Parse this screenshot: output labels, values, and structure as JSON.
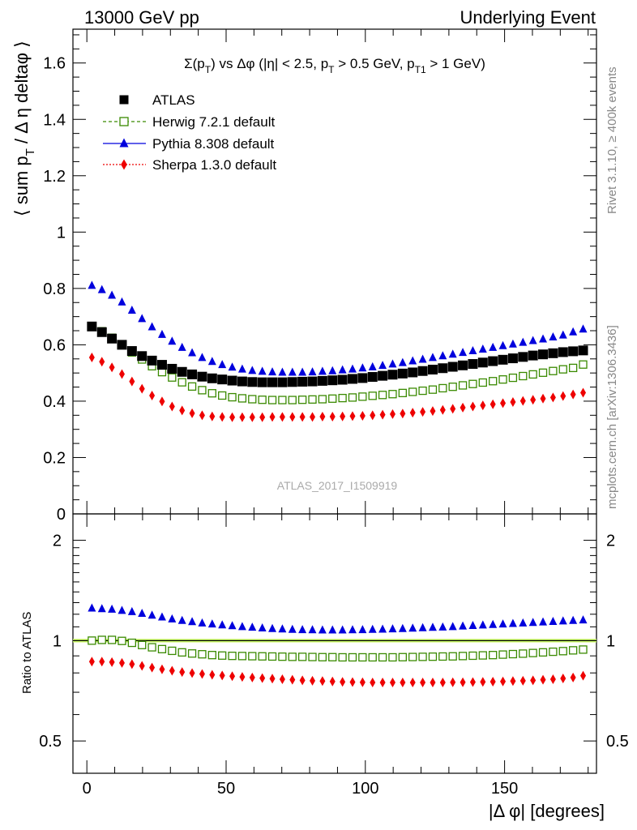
{
  "header": {
    "left": "13000 GeV pp",
    "right": "Underlying Event",
    "side_rivet": "Rivet 3.1.10, ≥ 400k events",
    "side_mcplots": "mcplots.cern.ch [arXiv:1306.3436]"
  },
  "chart_data": [
    {
      "type": "scatter",
      "panel": "main",
      "title_parts": [
        "Σ(p",
        "T",
        ") vs Δφ (|η| < 2.5, p",
        "T",
        " > 0.5 GeV, p",
        "T1",
        " > 1 GeV)"
      ],
      "ylabel_parts": [
        "⟨ sum p",
        "T",
        " / Δ η deltaφ ⟩"
      ],
      "watermark": "ATLAS_2017_I1509919",
      "xlim": [
        -5,
        183
      ],
      "ylim": [
        0,
        1.72
      ],
      "yticks": [
        0,
        0.2,
        0.4,
        0.6,
        0.8,
        1,
        1.2,
        1.4,
        1.6
      ],
      "ytick_labels": [
        "0",
        "0.2",
        "0.4",
        "0.6",
        "0.8",
        "1",
        "1.2",
        "1.4",
        "1.6"
      ],
      "legend_position": "top-left",
      "x": [
        1.8,
        5.4,
        9.0,
        12.6,
        16.2,
        19.8,
        23.4,
        27.0,
        30.6,
        34.2,
        37.8,
        41.4,
        45.0,
        48.6,
        52.2,
        55.8,
        59.4,
        63.0,
        66.6,
        70.2,
        73.8,
        77.4,
        81.0,
        84.6,
        88.2,
        91.8,
        95.4,
        99.0,
        102.6,
        106.2,
        109.8,
        113.4,
        117.0,
        120.6,
        124.2,
        127.8,
        131.4,
        135.0,
        138.6,
        142.2,
        145.8,
        149.4,
        153.0,
        156.6,
        160.2,
        163.8,
        167.4,
        171.0,
        174.6,
        178.2
      ],
      "series": [
        {
          "name": "ATLAS",
          "marker": "square-filled",
          "color": "#000000",
          "values": [
            0.665,
            0.645,
            0.622,
            0.6,
            0.578,
            0.56,
            0.544,
            0.529,
            0.515,
            0.504,
            0.495,
            0.487,
            0.481,
            0.477,
            0.473,
            0.47,
            0.468,
            0.467,
            0.467,
            0.467,
            0.468,
            0.469,
            0.47,
            0.472,
            0.474,
            0.476,
            0.479,
            0.482,
            0.486,
            0.49,
            0.494,
            0.498,
            0.502,
            0.507,
            0.512,
            0.517,
            0.522,
            0.527,
            0.532,
            0.537,
            0.542,
            0.547,
            0.552,
            0.557,
            0.562,
            0.566,
            0.57,
            0.574,
            0.577,
            0.58
          ]
        },
        {
          "name": "Herwig 7.2.1 default",
          "marker": "square-open",
          "color": "#3a8a00",
          "values": [
            0.665,
            0.648,
            0.625,
            0.6,
            0.573,
            0.548,
            0.524,
            0.503,
            0.484,
            0.467,
            0.452,
            0.439,
            0.428,
            0.42,
            0.414,
            0.41,
            0.407,
            0.405,
            0.404,
            0.404,
            0.404,
            0.405,
            0.406,
            0.407,
            0.409,
            0.411,
            0.413,
            0.416,
            0.419,
            0.422,
            0.425,
            0.429,
            0.433,
            0.437,
            0.441,
            0.446,
            0.451,
            0.456,
            0.461,
            0.466,
            0.471,
            0.477,
            0.483,
            0.489,
            0.495,
            0.501,
            0.507,
            0.513,
            0.518,
            0.53
          ]
        },
        {
          "name": "Pythia 8.308 default",
          "marker": "triangle-up",
          "color": "#0000dd",
          "values": [
            0.81,
            0.795,
            0.775,
            0.751,
            0.722,
            0.692,
            0.663,
            0.636,
            0.612,
            0.59,
            0.571,
            0.554,
            0.54,
            0.529,
            0.52,
            0.513,
            0.508,
            0.505,
            0.503,
            0.502,
            0.502,
            0.502,
            0.503,
            0.505,
            0.507,
            0.51,
            0.513,
            0.517,
            0.521,
            0.526,
            0.531,
            0.536,
            0.542,
            0.548,
            0.554,
            0.56,
            0.566,
            0.572,
            0.578,
            0.584,
            0.59,
            0.596,
            0.602,
            0.608,
            0.614,
            0.62,
            0.627,
            0.634,
            0.645,
            0.655
          ]
        },
        {
          "name": "Sherpa 1.3.0 default",
          "marker": "diamond",
          "color": "#ee0000",
          "values": [
            0.555,
            0.54,
            0.52,
            0.496,
            0.47,
            0.444,
            0.42,
            0.399,
            0.381,
            0.367,
            0.357,
            0.35,
            0.346,
            0.344,
            0.343,
            0.343,
            0.343,
            0.343,
            0.344,
            0.344,
            0.344,
            0.344,
            0.344,
            0.345,
            0.345,
            0.346,
            0.347,
            0.348,
            0.35,
            0.352,
            0.354,
            0.356,
            0.359,
            0.362,
            0.365,
            0.369,
            0.373,
            0.377,
            0.381,
            0.385,
            0.389,
            0.393,
            0.397,
            0.401,
            0.405,
            0.409,
            0.413,
            0.418,
            0.424,
            0.43
          ]
        }
      ]
    },
    {
      "type": "scatter",
      "panel": "ratio",
      "ylabel": "Ratio to ATLAS",
      "xlabel": "|Δ φ| [degrees]",
      "xlim": [
        -5,
        183
      ],
      "xticks": [
        0,
        50,
        100,
        150
      ],
      "xtick_labels": [
        "0",
        "50",
        "100",
        "150"
      ],
      "ylim": [
        0.4,
        2.4
      ],
      "ytick_labels": [
        "0.5",
        "1",
        "2"
      ],
      "yticks": [
        0.5,
        1,
        2
      ],
      "reference_band_color": "#ccff66",
      "x": [
        1.8,
        5.4,
        9.0,
        12.6,
        16.2,
        19.8,
        23.4,
        27.0,
        30.6,
        34.2,
        37.8,
        41.4,
        45.0,
        48.6,
        52.2,
        55.8,
        59.4,
        63.0,
        66.6,
        70.2,
        73.8,
        77.4,
        81.0,
        84.6,
        88.2,
        91.8,
        95.4,
        99.0,
        102.6,
        106.2,
        109.8,
        113.4,
        117.0,
        120.6,
        124.2,
        127.8,
        131.4,
        135.0,
        138.6,
        142.2,
        145.8,
        149.4,
        153.0,
        156.6,
        160.2,
        163.8,
        167.4,
        171.0,
        174.6,
        178.2
      ],
      "series": [
        {
          "name": "Herwig 7.2.1 default",
          "marker": "square-open",
          "color": "#3a8a00",
          "values": [
            1.0,
            1.005,
            1.005,
            0.998,
            0.985,
            0.97,
            0.955,
            0.943,
            0.932,
            0.922,
            0.915,
            0.91,
            0.905,
            0.902,
            0.9,
            0.899,
            0.898,
            0.897,
            0.896,
            0.895,
            0.894,
            0.894,
            0.893,
            0.892,
            0.892,
            0.891,
            0.891,
            0.891,
            0.891,
            0.891,
            0.891,
            0.892,
            0.893,
            0.894,
            0.895,
            0.896,
            0.897,
            0.899,
            0.901,
            0.903,
            0.905,
            0.908,
            0.911,
            0.914,
            0.918,
            0.922,
            0.926,
            0.93,
            0.935,
            0.94
          ]
        },
        {
          "name": "Pythia 8.308 default",
          "marker": "triangle-up",
          "color": "#0000dd",
          "values": [
            1.25,
            1.245,
            1.24,
            1.23,
            1.22,
            1.205,
            1.19,
            1.175,
            1.16,
            1.148,
            1.138,
            1.128,
            1.12,
            1.113,
            1.107,
            1.1,
            1.095,
            1.09,
            1.085,
            1.082,
            1.079,
            1.077,
            1.076,
            1.075,
            1.075,
            1.075,
            1.076,
            1.077,
            1.079,
            1.081,
            1.083,
            1.085,
            1.088,
            1.091,
            1.094,
            1.097,
            1.1,
            1.104,
            1.108,
            1.112,
            1.116,
            1.12,
            1.124,
            1.128,
            1.132,
            1.136,
            1.14,
            1.144,
            1.148,
            1.152
          ]
        },
        {
          "name": "Sherpa 1.3.0 default",
          "marker": "diamond",
          "color": "#ee0000",
          "values": [
            0.865,
            0.865,
            0.862,
            0.857,
            0.85,
            0.84,
            0.83,
            0.82,
            0.812,
            0.805,
            0.799,
            0.794,
            0.79,
            0.786,
            0.782,
            0.778,
            0.775,
            0.772,
            0.769,
            0.766,
            0.763,
            0.76,
            0.758,
            0.756,
            0.754,
            0.752,
            0.751,
            0.75,
            0.749,
            0.749,
            0.749,
            0.749,
            0.749,
            0.749,
            0.749,
            0.749,
            0.75,
            0.75,
            0.751,
            0.752,
            0.753,
            0.754,
            0.756,
            0.758,
            0.76,
            0.763,
            0.766,
            0.77,
            0.775,
            0.785
          ]
        }
      ]
    }
  ]
}
